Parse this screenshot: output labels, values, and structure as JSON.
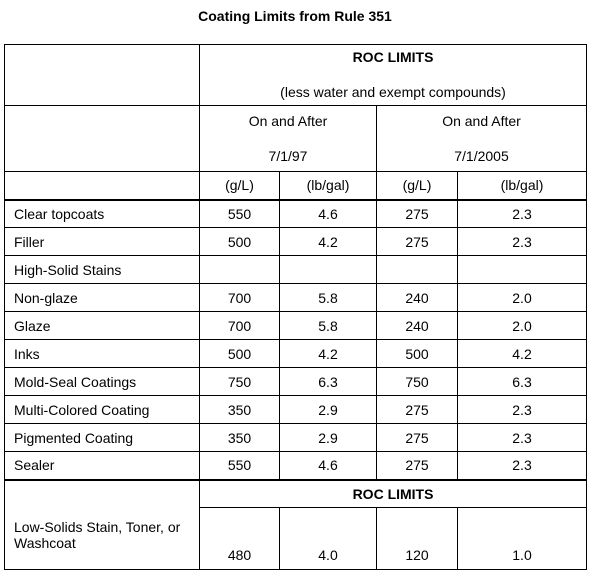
{
  "title": "Coating Limits from Rule 351",
  "header": {
    "roc_limits": "ROC LIMITS",
    "subtitle": "(less water and exempt compounds)",
    "period1": {
      "line1": "On and After",
      "line2": "7/1/97"
    },
    "period2": {
      "line1": "On and After",
      "line2": "7/1/2005"
    },
    "units": [
      "(g/L)",
      "(lb/gal)",
      "(g/L)",
      "(lb/gal)"
    ]
  },
  "rows": [
    {
      "label": "Clear topcoats",
      "values": [
        "550",
        "4.6",
        "275",
        "2.3"
      ]
    },
    {
      "label": "Filler",
      "values": [
        "500",
        "4.2",
        "275",
        "2.3"
      ]
    },
    {
      "label": "High-Solid Stains",
      "values": [
        "",
        "",
        "",
        ""
      ]
    },
    {
      "label": "Non-glaze",
      "values": [
        "700",
        "5.8",
        "240",
        "2.0"
      ]
    },
    {
      "label": "Glaze",
      "values": [
        "700",
        "5.8",
        "240",
        "2.0"
      ]
    },
    {
      "label": "Inks",
      "values": [
        "500",
        "4.2",
        "500",
        "4.2"
      ]
    },
    {
      "label": "Mold-Seal Coatings",
      "values": [
        "750",
        "6.3",
        "750",
        "6.3"
      ]
    },
    {
      "label": "Multi-Colored Coating",
      "values": [
        "350",
        "2.9",
        "275",
        "2.3"
      ]
    },
    {
      "label": "Pigmented Coating",
      "values": [
        "350",
        "2.9",
        "275",
        "2.3"
      ]
    },
    {
      "label": "Sealer",
      "values": [
        "550",
        "4.6",
        "275",
        "2.3"
      ]
    }
  ],
  "footer": {
    "roc_limits": "ROC LIMITS",
    "label": "Low-Solids Stain, Toner, or Washcoat",
    "values": [
      "480",
      "4.0",
      "120",
      "1.0"
    ]
  }
}
